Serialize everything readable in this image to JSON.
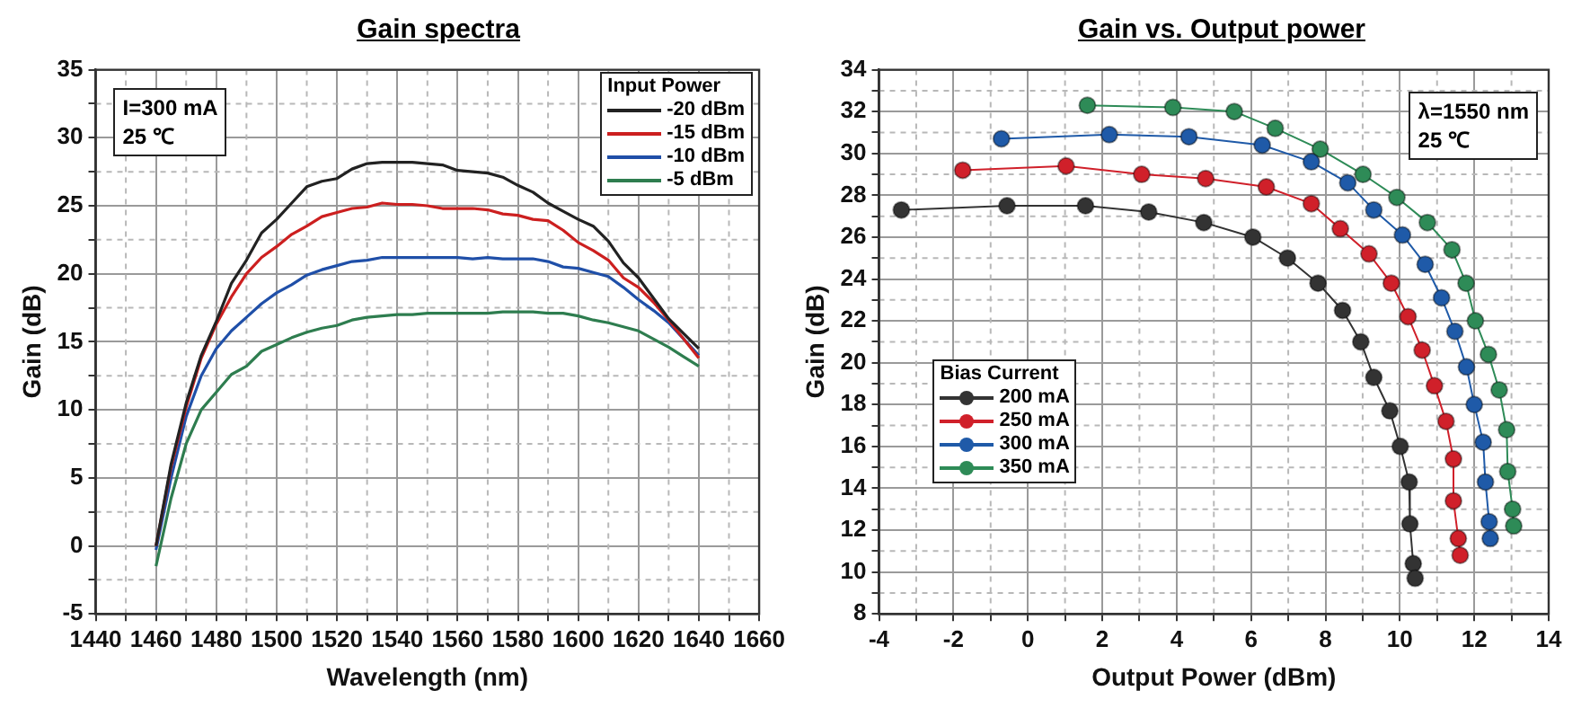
{
  "chart_data": [
    {
      "type": "line",
      "title": "Gain spectra",
      "xlabel": "Wavelength (nm)",
      "ylabel": "Gain (dB)",
      "legend_title": "Input Power",
      "legend": "top right",
      "grid": true,
      "marker": "none",
      "annotations": [
        "I=300 mA",
        "25 ℃"
      ],
      "x": [
        1460,
        1465,
        1470,
        1475,
        1480,
        1485,
        1490,
        1495,
        1500,
        1505,
        1510,
        1515,
        1520,
        1525,
        1530,
        1535,
        1540,
        1545,
        1550,
        1555,
        1560,
        1565,
        1570,
        1575,
        1580,
        1585,
        1590,
        1595,
        1600,
        1605,
        1610,
        1615,
        1620,
        1625,
        1630,
        1635,
        1640
      ],
      "series": [
        {
          "name": "-20 dBm",
          "color": "#222222",
          "values": [
            0.0,
            6,
            10.5,
            14,
            16.5,
            19.3,
            21,
            23,
            24,
            25.2,
            26.4,
            26.8,
            27,
            27.7,
            28.1,
            28.2,
            28.2,
            28.2,
            28.1,
            28,
            27.6,
            27.5,
            27.4,
            27.1,
            26.5,
            26,
            25.2,
            24.6,
            24,
            23.5,
            22.4,
            20.8,
            19.7,
            18.2,
            16.7,
            15.6,
            14.5
          ]
        },
        {
          "name": "-15 dBm",
          "color": "#cc1f1f",
          "values": [
            0.0,
            5.8,
            10.2,
            13.8,
            16.3,
            18.3,
            20,
            21.2,
            22,
            22.9,
            23.5,
            24.2,
            24.5,
            24.8,
            24.9,
            25.2,
            25.1,
            25.1,
            25,
            24.8,
            24.8,
            24.8,
            24.7,
            24.4,
            24.3,
            24,
            23.9,
            23.2,
            22.3,
            21.7,
            21,
            19.7,
            19,
            17.9,
            16.6,
            15.2,
            13.8
          ]
        },
        {
          "name": "-10 dBm",
          "color": "#1f4fa8",
          "values": [
            -0.3,
            5,
            9.5,
            12.5,
            14.5,
            15.8,
            16.8,
            17.8,
            18.6,
            19.2,
            19.9,
            20.3,
            20.6,
            20.9,
            21,
            21.2,
            21.2,
            21.2,
            21.2,
            21.2,
            21.2,
            21.1,
            21.2,
            21.1,
            21.1,
            21.1,
            20.9,
            20.5,
            20.4,
            20.1,
            19.8,
            19,
            18.1,
            17.3,
            16.4,
            15.2,
            14
          ]
        },
        {
          "name": "-5 dBm",
          "color": "#2e7d4f",
          "values": [
            -1.5,
            3.5,
            7.5,
            10,
            11.3,
            12.6,
            13.2,
            14.3,
            14.8,
            15.3,
            15.7,
            16,
            16.2,
            16.6,
            16.8,
            16.9,
            17,
            17,
            17.1,
            17.1,
            17.1,
            17.1,
            17.1,
            17.2,
            17.2,
            17.2,
            17.1,
            17.1,
            16.9,
            16.6,
            16.4,
            16.1,
            15.8,
            15.2,
            14.6,
            13.9,
            13.2
          ]
        }
      ],
      "xlim": [
        1440,
        1660
      ],
      "xticks": [
        1440,
        {
          "value": 1450,
          "label": null
        },
        1460,
        {
          "value": 1470,
          "label": null
        },
        1480,
        {
          "value": 1490,
          "label": null
        },
        1500,
        {
          "value": 1510,
          "label": null
        },
        1520,
        {
          "value": 1530,
          "label": null
        },
        1540,
        {
          "value": 1550,
          "label": null
        },
        1560,
        {
          "value": 1570,
          "label": null
        },
        1580,
        {
          "value": 1590,
          "label": null
        },
        1600,
        {
          "value": 1610,
          "label": null
        },
        1620,
        {
          "value": 1630,
          "label": null
        },
        1640,
        {
          "value": 1650,
          "label": null
        },
        1660
      ],
      "ylim": [
        -5,
        35
      ],
      "yticks": [
        -5,
        {
          "value": -2.5,
          "label": null
        },
        0,
        {
          "value": 2.5,
          "label": null
        },
        5,
        {
          "value": 7.5,
          "label": null
        },
        10,
        {
          "value": 12.5,
          "label": null
        },
        15,
        {
          "value": 17.5,
          "label": null
        },
        20,
        {
          "value": 22.5,
          "label": null
        },
        25,
        {
          "value": 27.5,
          "label": null
        },
        30,
        {
          "value": 32.5,
          "label": null
        },
        35
      ]
    },
    {
      "type": "line",
      "title": "Gain vs. Output power",
      "xlabel": "Output Power (dBm)",
      "ylabel": "Gain (dB)",
      "legend_title": "Bias Current",
      "legend": "left",
      "grid": true,
      "marker": "circle",
      "annotations": [
        "λ=1550 nm",
        "25 ℃"
      ],
      "series": [
        {
          "name": "200 mA",
          "color": "#333333",
          "x": [
            -3.4,
            -0.56,
            1.55,
            3.25,
            4.73,
            6.05,
            6.98,
            7.8,
            8.46,
            8.95,
            9.3,
            9.73,
            10.01,
            10.25,
            10.27,
            10.36,
            10.41
          ],
          "values": [
            27.3,
            27.5,
            27.5,
            27.2,
            26.7,
            26.0,
            25.0,
            23.8,
            22.5,
            21.0,
            19.3,
            17.7,
            16.0,
            14.3,
            12.3,
            10.4,
            9.7
          ]
        },
        {
          "name": "250 mA",
          "color": "#d0202a",
          "x": [
            -1.75,
            1.03,
            3.06,
            4.78,
            6.41,
            7.62,
            8.4,
            9.17,
            9.77,
            10.22,
            10.6,
            10.93,
            11.24,
            11.44,
            11.44,
            11.57,
            11.62
          ],
          "values": [
            29.2,
            29.4,
            29.0,
            28.8,
            28.4,
            27.6,
            26.4,
            25.2,
            23.8,
            22.2,
            20.6,
            18.9,
            17.2,
            15.4,
            13.4,
            11.6,
            10.8
          ]
        },
        {
          "name": "300 mA",
          "color": "#1f5aa8",
          "x": [
            -0.71,
            2.19,
            4.33,
            6.3,
            7.62,
            8.6,
            9.3,
            10.07,
            10.68,
            11.12,
            11.48,
            11.79,
            12.0,
            12.24,
            12.3,
            12.4,
            12.43
          ],
          "values": [
            30.7,
            30.9,
            30.8,
            30.4,
            29.6,
            28.6,
            27.3,
            26.1,
            24.7,
            23.1,
            21.5,
            19.8,
            18.0,
            16.2,
            14.3,
            12.4,
            11.6
          ]
        },
        {
          "name": "350 mA",
          "color": "#2e8b57",
          "x": [
            1.6,
            3.9,
            5.55,
            6.65,
            7.86,
            9.01,
            9.92,
            10.74,
            11.4,
            11.78,
            12.03,
            12.38,
            12.67,
            12.87,
            12.9,
            13.03,
            13.06
          ],
          "values": [
            32.3,
            32.2,
            32.0,
            31.2,
            30.2,
            29.0,
            27.9,
            26.7,
            25.4,
            23.8,
            22.0,
            20.4,
            18.7,
            16.8,
            14.8,
            13.0,
            12.2
          ]
        }
      ],
      "xlim": [
        -4,
        14
      ],
      "xticks": [
        -4,
        {
          "value": -3,
          "label": null
        },
        -2,
        {
          "value": -1,
          "label": null
        },
        0,
        {
          "value": 1,
          "label": null
        },
        2,
        {
          "value": 3,
          "label": null
        },
        4,
        {
          "value": 5,
          "label": null
        },
        6,
        {
          "value": 7,
          "label": null
        },
        8,
        {
          "value": 9,
          "label": null
        },
        10,
        {
          "value": 11,
          "label": null
        },
        12,
        {
          "value": 13,
          "label": null
        },
        14
      ],
      "ylim": [
        8,
        34
      ],
      "yticks": [
        8,
        {
          "value": 9,
          "label": null
        },
        10,
        {
          "value": 11,
          "label": null
        },
        12,
        {
          "value": 13,
          "label": null
        },
        14,
        {
          "value": 15,
          "label": null
        },
        16,
        {
          "value": 17,
          "label": null
        },
        18,
        {
          "value": 19,
          "label": null
        },
        20,
        {
          "value": 21,
          "label": null
        },
        22,
        {
          "value": 23,
          "label": null
        },
        24,
        {
          "value": 25,
          "label": null
        },
        26,
        {
          "value": 27,
          "label": null
        },
        28,
        {
          "value": 29,
          "label": null
        },
        30,
        {
          "value": 31,
          "label": null
        },
        32,
        {
          "value": 33,
          "label": null
        },
        34
      ]
    }
  ]
}
